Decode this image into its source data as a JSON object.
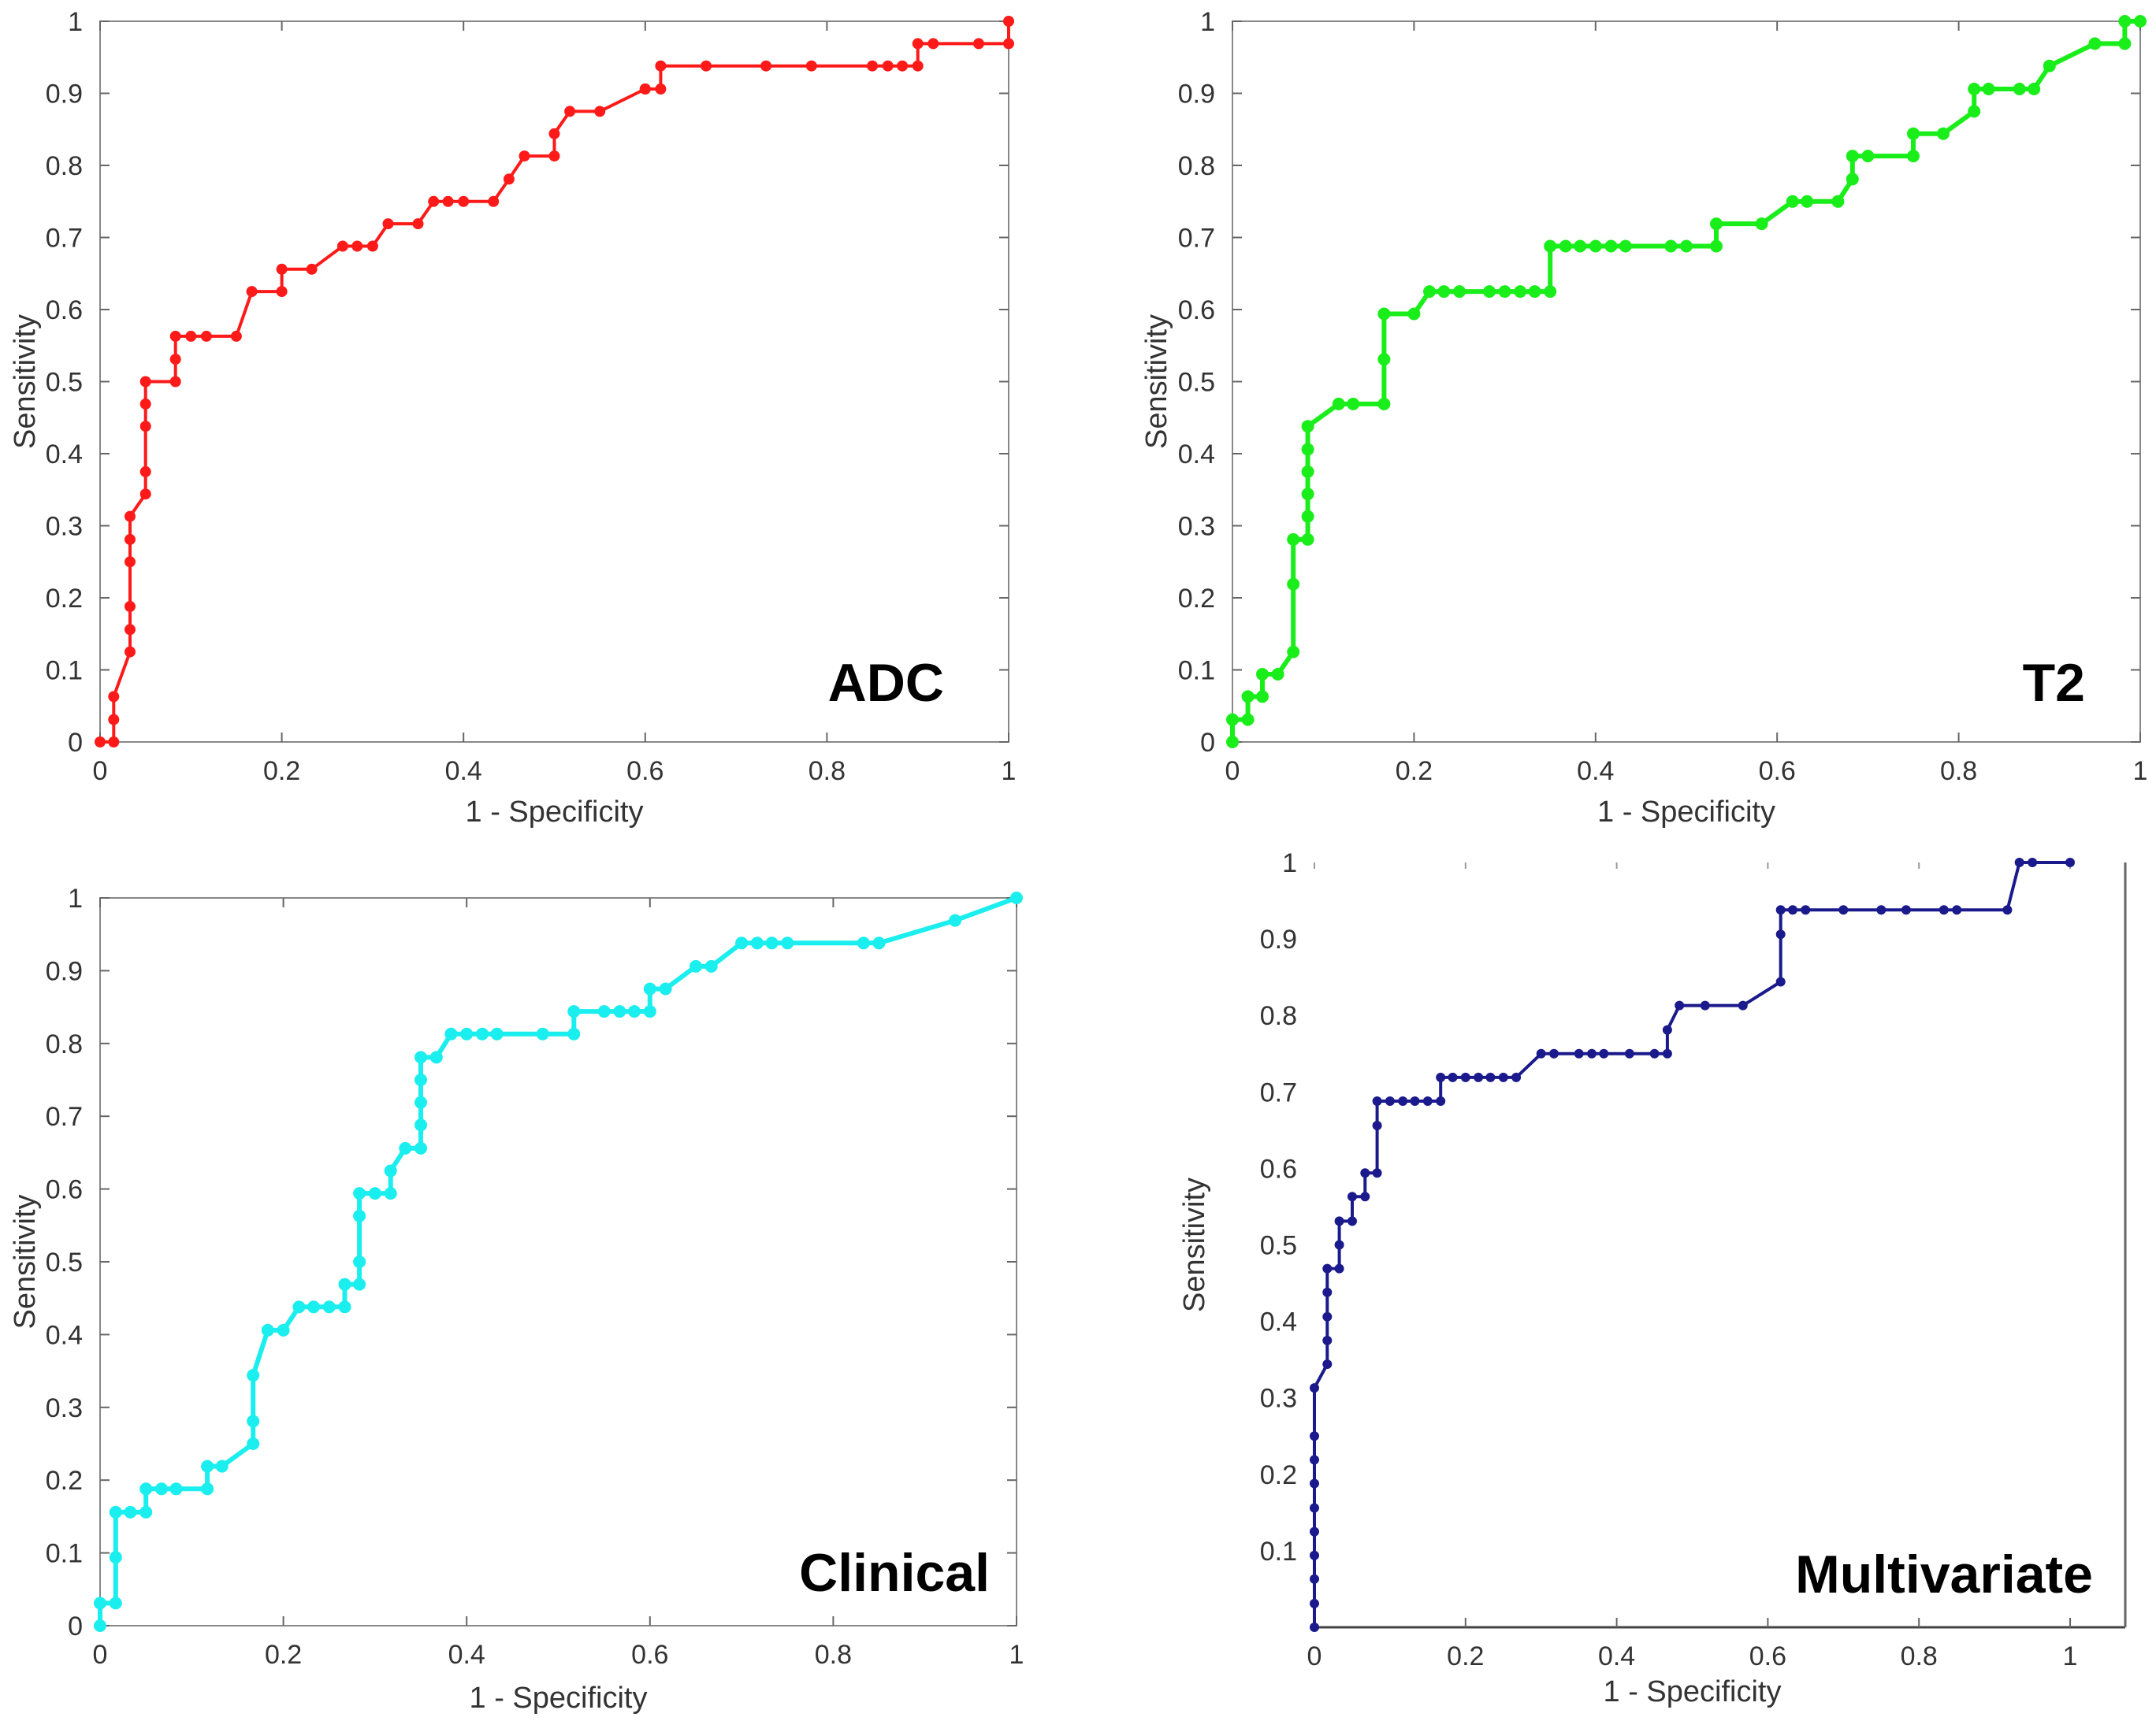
{
  "chart_data": [
    {
      "type": "line",
      "title": "",
      "annotation": "ADC",
      "xlabel": "1 - Specificity",
      "ylabel": "Sensitivity",
      "xlim": [
        0,
        1
      ],
      "ylim": [
        0,
        1
      ],
      "xticks": [
        "0",
        "0.2",
        "0.4",
        "0.6",
        "0.8",
        "1"
      ],
      "yticks": [
        "0",
        "0.1",
        "0.2",
        "0.3",
        "0.4",
        "0.5",
        "0.6",
        "0.7",
        "0.8",
        "0.9",
        "1"
      ],
      "color": "#ff1a1a",
      "points": [
        [
          0,
          0
        ],
        [
          0.015,
          0
        ],
        [
          0.015,
          0.031
        ],
        [
          0.015,
          0.063
        ],
        [
          0.033,
          0.125
        ],
        [
          0.033,
          0.156
        ],
        [
          0.033,
          0.188
        ],
        [
          0.033,
          0.25
        ],
        [
          0.033,
          0.281
        ],
        [
          0.033,
          0.313
        ],
        [
          0.05,
          0.344
        ],
        [
          0.05,
          0.375
        ],
        [
          0.05,
          0.438
        ],
        [
          0.05,
          0.469
        ],
        [
          0.05,
          0.5
        ],
        [
          0.083,
          0.5
        ],
        [
          0.083,
          0.531
        ],
        [
          0.083,
          0.563
        ],
        [
          0.1,
          0.563
        ],
        [
          0.117,
          0.563
        ],
        [
          0.15,
          0.563
        ],
        [
          0.167,
          0.625
        ],
        [
          0.2,
          0.625
        ],
        [
          0.2,
          0.656
        ],
        [
          0.233,
          0.656
        ],
        [
          0.267,
          0.688
        ],
        [
          0.283,
          0.688
        ],
        [
          0.3,
          0.688
        ],
        [
          0.317,
          0.719
        ],
        [
          0.35,
          0.719
        ],
        [
          0.367,
          0.75
        ],
        [
          0.383,
          0.75
        ],
        [
          0.4,
          0.75
        ],
        [
          0.433,
          0.75
        ],
        [
          0.45,
          0.781
        ],
        [
          0.467,
          0.813
        ],
        [
          0.5,
          0.813
        ],
        [
          0.5,
          0.844
        ],
        [
          0.517,
          0.875
        ],
        [
          0.55,
          0.875
        ],
        [
          0.6,
          0.906
        ],
        [
          0.6,
          0.906
        ],
        [
          0.6,
          0.906
        ],
        [
          0.617,
          0.906
        ],
        [
          0.617,
          0.938
        ],
        [
          0.667,
          0.938
        ],
        [
          0.733,
          0.938
        ],
        [
          0.783,
          0.938
        ],
        [
          0.85,
          0.938
        ],
        [
          0.867,
          0.938
        ],
        [
          0.883,
          0.938
        ],
        [
          0.9,
          0.938
        ],
        [
          0.9,
          0.969
        ],
        [
          0.917,
          0.969
        ],
        [
          0.967,
          0.969
        ],
        [
          1,
          0.969
        ],
        [
          1,
          1
        ]
      ]
    },
    {
      "type": "line",
      "title": "",
      "annotation": "T2",
      "xlabel": "1 - Specificity",
      "ylabel": "Sensitivity",
      "xlim": [
        0,
        1
      ],
      "ylim": [
        0,
        1
      ],
      "xticks": [
        "0",
        "0.2",
        "0.4",
        "0.6",
        "0.8",
        "1"
      ],
      "yticks": [
        "0",
        "0.1",
        "0.2",
        "0.3",
        "0.4",
        "0.5",
        "0.6",
        "0.7",
        "0.8",
        "0.9",
        "1"
      ],
      "color": "#1aee1a",
      "points": [
        [
          0,
          0
        ],
        [
          0,
          0.031
        ],
        [
          0.017,
          0.031
        ],
        [
          0.017,
          0.063
        ],
        [
          0.033,
          0.063
        ],
        [
          0.033,
          0.094
        ],
        [
          0.05,
          0.094
        ],
        [
          0.067,
          0.125
        ],
        [
          0.067,
          0.219
        ],
        [
          0.067,
          0.281
        ],
        [
          0.083,
          0.281
        ],
        [
          0.083,
          0.313
        ],
        [
          0.083,
          0.344
        ],
        [
          0.083,
          0.375
        ],
        [
          0.083,
          0.406
        ],
        [
          0.083,
          0.438
        ],
        [
          0.117,
          0.469
        ],
        [
          0.133,
          0.469
        ],
        [
          0.167,
          0.469
        ],
        [
          0.167,
          0.531
        ],
        [
          0.167,
          0.594
        ],
        [
          0.2,
          0.594
        ],
        [
          0.217,
          0.625
        ],
        [
          0.233,
          0.625
        ],
        [
          0.25,
          0.625
        ],
        [
          0.283,
          0.625
        ],
        [
          0.3,
          0.625
        ],
        [
          0.317,
          0.625
        ],
        [
          0.333,
          0.625
        ],
        [
          0.35,
          0.625
        ],
        [
          0.35,
          0.688
        ],
        [
          0.367,
          0.688
        ],
        [
          0.383,
          0.688
        ],
        [
          0.4,
          0.688
        ],
        [
          0.417,
          0.688
        ],
        [
          0.433,
          0.688
        ],
        [
          0.483,
          0.688
        ],
        [
          0.5,
          0.688
        ],
        [
          0.533,
          0.688
        ],
        [
          0.533,
          0.719
        ],
        [
          0.583,
          0.719
        ],
        [
          0.617,
          0.75
        ],
        [
          0.633,
          0.75
        ],
        [
          0.667,
          0.75
        ],
        [
          0.683,
          0.781
        ],
        [
          0.683,
          0.813
        ],
        [
          0.7,
          0.813
        ],
        [
          0.75,
          0.813
        ],
        [
          0.75,
          0.844
        ],
        [
          0.783,
          0.844
        ],
        [
          0.817,
          0.875
        ],
        [
          0.817,
          0.906
        ],
        [
          0.833,
          0.906
        ],
        [
          0.867,
          0.906
        ],
        [
          0.883,
          0.906
        ],
        [
          0.9,
          0.938
        ],
        [
          0.95,
          0.969
        ],
        [
          0.983,
          0.969
        ],
        [
          0.983,
          1
        ],
        [
          1,
          1
        ]
      ]
    },
    {
      "type": "line",
      "title": "",
      "annotation": "Clinical",
      "xlabel": "1 - Specificity",
      "ylabel": "Sensitivity",
      "xlim": [
        0,
        1
      ],
      "ylim": [
        0,
        1
      ],
      "xticks": [
        "0",
        "0.2",
        "0.4",
        "0.6",
        "0.8",
        "1"
      ],
      "yticks": [
        "0",
        "0.1",
        "0.2",
        "0.3",
        "0.4",
        "0.5",
        "0.6",
        "0.7",
        "0.8",
        "0.9",
        "1"
      ],
      "color": "#1aeeee",
      "points": [
        [
          0,
          0
        ],
        [
          0,
          0.031
        ],
        [
          0.017,
          0.031
        ],
        [
          0.017,
          0.094
        ],
        [
          0.017,
          0.156
        ],
        [
          0.033,
          0.156
        ],
        [
          0.05,
          0.156
        ],
        [
          0.05,
          0.188
        ],
        [
          0.067,
          0.188
        ],
        [
          0.083,
          0.188
        ],
        [
          0.117,
          0.188
        ],
        [
          0.117,
          0.219
        ],
        [
          0.133,
          0.219
        ],
        [
          0.167,
          0.25
        ],
        [
          0.167,
          0.281
        ],
        [
          0.167,
          0.344
        ],
        [
          0.183,
          0.406
        ],
        [
          0.2,
          0.406
        ],
        [
          0.217,
          0.438
        ],
        [
          0.233,
          0.438
        ],
        [
          0.25,
          0.438
        ],
        [
          0.267,
          0.438
        ],
        [
          0.267,
          0.469
        ],
        [
          0.283,
          0.469
        ],
        [
          0.283,
          0.5
        ],
        [
          0.283,
          0.563
        ],
        [
          0.283,
          0.594
        ],
        [
          0.3,
          0.594
        ],
        [
          0.317,
          0.594
        ],
        [
          0.317,
          0.625
        ],
        [
          0.333,
          0.656
        ],
        [
          0.35,
          0.656
        ],
        [
          0.35,
          0.688
        ],
        [
          0.35,
          0.719
        ],
        [
          0.35,
          0.75
        ],
        [
          0.35,
          0.781
        ],
        [
          0.367,
          0.781
        ],
        [
          0.383,
          0.813
        ],
        [
          0.4,
          0.813
        ],
        [
          0.417,
          0.813
        ],
        [
          0.433,
          0.813
        ],
        [
          0.483,
          0.813
        ],
        [
          0.517,
          0.813
        ],
        [
          0.517,
          0.844
        ],
        [
          0.55,
          0.844
        ],
        [
          0.567,
          0.844
        ],
        [
          0.583,
          0.844
        ],
        [
          0.6,
          0.844
        ],
        [
          0.6,
          0.875
        ],
        [
          0.617,
          0.875
        ],
        [
          0.65,
          0.906
        ],
        [
          0.667,
          0.906
        ],
        [
          0.7,
          0.938
        ],
        [
          0.717,
          0.938
        ],
        [
          0.733,
          0.938
        ],
        [
          0.75,
          0.938
        ],
        [
          0.833,
          0.938
        ],
        [
          0.85,
          0.938
        ],
        [
          0.933,
          0.969
        ],
        [
          1,
          1
        ]
      ]
    },
    {
      "type": "line",
      "title": "",
      "annotation": "Multivariate",
      "xlabel": "1 - Specificity",
      "ylabel": "Sensitivity",
      "xlim": [
        0,
        1
      ],
      "ylim": [
        0,
        1
      ],
      "xticks": [
        "0",
        "0.2",
        "0.4",
        "0.6",
        "0.8",
        "1"
      ],
      "yticks": [
        "0.1",
        "0.2",
        "0.3",
        "0.4",
        "0.5",
        "0.6",
        "0.7",
        "0.8",
        "0.9",
        "1"
      ],
      "color": "#1a1a8c",
      "points": [
        [
          0,
          0
        ],
        [
          0,
          0.031
        ],
        [
          0,
          0.063
        ],
        [
          0,
          0.094
        ],
        [
          0,
          0.125
        ],
        [
          0,
          0.156
        ],
        [
          0,
          0.188
        ],
        [
          0,
          0.219
        ],
        [
          0,
          0.25
        ],
        [
          0,
          0.313
        ],
        [
          0.017,
          0.344
        ],
        [
          0.017,
          0.375
        ],
        [
          0.017,
          0.406
        ],
        [
          0.017,
          0.438
        ],
        [
          0.017,
          0.469
        ],
        [
          0.033,
          0.469
        ],
        [
          0.033,
          0.5
        ],
        [
          0.033,
          0.531
        ],
        [
          0.05,
          0.531
        ],
        [
          0.05,
          0.563
        ],
        [
          0.067,
          0.563
        ],
        [
          0.067,
          0.594
        ],
        [
          0.083,
          0.594
        ],
        [
          0.083,
          0.656
        ],
        [
          0.083,
          0.688
        ],
        [
          0.1,
          0.688
        ],
        [
          0.117,
          0.688
        ],
        [
          0.133,
          0.688
        ],
        [
          0.15,
          0.688
        ],
        [
          0.167,
          0.688
        ],
        [
          0.167,
          0.719
        ],
        [
          0.183,
          0.719
        ],
        [
          0.2,
          0.719
        ],
        [
          0.217,
          0.719
        ],
        [
          0.233,
          0.719
        ],
        [
          0.25,
          0.719
        ],
        [
          0.267,
          0.719
        ],
        [
          0.3,
          0.75
        ],
        [
          0.317,
          0.75
        ],
        [
          0.35,
          0.75
        ],
        [
          0.367,
          0.75
        ],
        [
          0.383,
          0.75
        ],
        [
          0.417,
          0.75
        ],
        [
          0.45,
          0.75
        ],
        [
          0.467,
          0.75
        ],
        [
          0.467,
          0.781
        ],
        [
          0.483,
          0.813
        ],
        [
          0.517,
          0.813
        ],
        [
          0.567,
          0.813
        ],
        [
          0.617,
          0.844
        ],
        [
          0.617,
          0.906
        ],
        [
          0.617,
          0.938
        ],
        [
          0.633,
          0.938
        ],
        [
          0.65,
          0.938
        ],
        [
          0.7,
          0.938
        ],
        [
          0.75,
          0.938
        ],
        [
          0.783,
          0.938
        ],
        [
          0.833,
          0.938
        ],
        [
          0.85,
          0.938
        ],
        [
          0.917,
          0.938
        ],
        [
          0.933,
          1
        ],
        [
          0.95,
          1
        ],
        [
          1,
          1
        ]
      ]
    }
  ]
}
